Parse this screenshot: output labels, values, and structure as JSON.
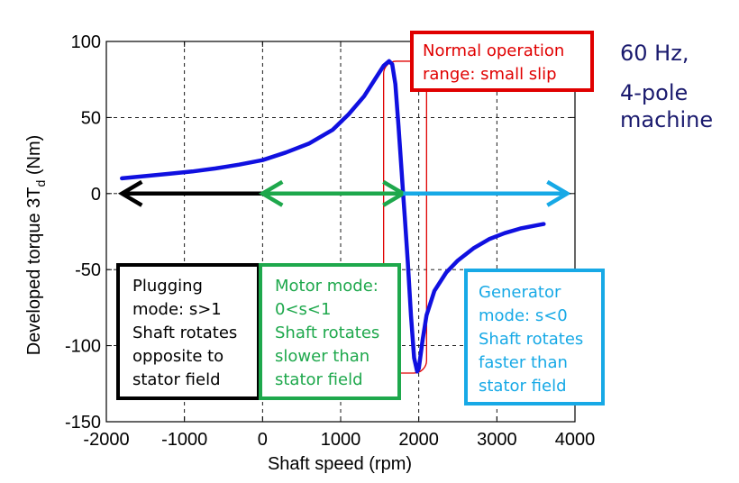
{
  "chart_data": {
    "type": "line",
    "xlabel": "Shaft speed (rpm)",
    "ylabel": "Developed torque 3T",
    "ylabel_subscript": "d",
    "ylabel_unit": " (Nm)",
    "xlim": [
      -2000,
      4000
    ],
    "ylim": [
      -150,
      100
    ],
    "x_ticks": [
      -2000,
      -1000,
      0,
      1000,
      2000,
      3000,
      4000
    ],
    "x_tick_labels": [
      "-2000",
      "-1000",
      "0",
      "1000",
      "2000",
      "3000",
      "4000"
    ],
    "y_ticks": [
      -150,
      -100,
      -50,
      0,
      50,
      100
    ],
    "y_tick_labels": [
      "-150",
      "-100",
      "-50",
      "0",
      "50",
      "100"
    ],
    "grid": true,
    "series": [
      {
        "color": "#1010e0",
        "x": [
          -1800,
          -1500,
          -1200,
          -900,
          -600,
          -300,
          0,
          300,
          600,
          900,
          1100,
          1300,
          1450,
          1550,
          1620,
          1660,
          1700,
          1740,
          1780,
          1800,
          1820,
          1860,
          1900,
          1940,
          1980,
          2000,
          2050,
          2100,
          2200,
          2350,
          2500,
          2700,
          2900,
          3100,
          3300,
          3500,
          3600
        ],
        "y": [
          10,
          11.5,
          13,
          14.5,
          16.5,
          19,
          22,
          27,
          33,
          42,
          52,
          64,
          76,
          84,
          87,
          85,
          72,
          45,
          15,
          0,
          -15,
          -45,
          -80,
          -108,
          -117,
          -115,
          -96,
          -80,
          -64,
          -52,
          -44,
          -36,
          -30,
          -26,
          -23,
          -21,
          -20
        ]
      }
    ],
    "mode_arrows": [
      {
        "name": "plugging",
        "from": 0,
        "to": -1800,
        "color": "#000000"
      },
      {
        "name": "motor",
        "from": 0,
        "to": 1800,
        "color": "#1ea84c",
        "double": true
      },
      {
        "name": "generator",
        "from": 1800,
        "to": 3900,
        "color": "#17a9e6"
      }
    ],
    "normal_range": {
      "x_from": 1550,
      "x_to": 2100,
      "y_from": -118,
      "y_to": 87,
      "color": "#e00000"
    }
  },
  "notes": {
    "machine_line1": "60 Hz,",
    "machine_line2": "4-pole",
    "machine_line3": "machine"
  },
  "boxes": {
    "normal": {
      "lines": [
        "Normal operation",
        "range: small slip"
      ],
      "color": "#e00000"
    },
    "plugging": {
      "lines": [
        "Plugging",
        "mode: s>1",
        "Shaft rotates",
        "opposite to",
        "stator field"
      ],
      "color": "#000000"
    },
    "motor": {
      "lines": [
        "Motor mode:",
        "0<s<1",
        "Shaft rotates",
        "slower than",
        "stator field"
      ],
      "color": "#1ea84c"
    },
    "generator": {
      "lines": [
        "Generator",
        "mode: s<0",
        "Shaft rotates",
        "faster than",
        "stator field"
      ],
      "color": "#17a9e6"
    }
  }
}
